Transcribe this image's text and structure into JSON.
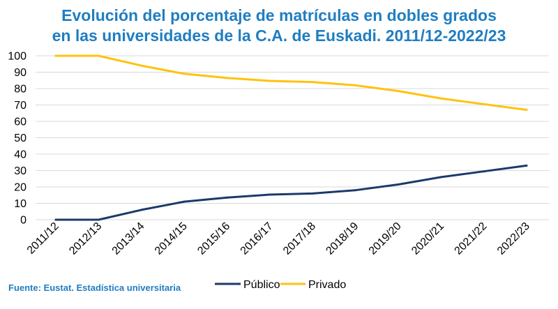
{
  "chart_data": {
    "type": "line",
    "title": [
      "Evolución del porcentaje de matrículas en dobles grados",
      "en las universidades de la C.A. de Euskadi. 2011/12-2022/23"
    ],
    "xlabel": "",
    "ylabel": "",
    "ylim": [
      0,
      100
    ],
    "yticks": [
      0,
      10,
      20,
      30,
      40,
      50,
      60,
      70,
      80,
      90,
      100
    ],
    "grid": true,
    "legend_position": "bottom",
    "categories": [
      "2011/12",
      "2012/13",
      "2013/14",
      "2014/15",
      "2015/16",
      "2016/17",
      "2017/18",
      "2018/19",
      "2019/20",
      "2020/21",
      "2021/22",
      "2022/23"
    ],
    "series": [
      {
        "name": "Público",
        "color": "#1b3a6b",
        "values": [
          0,
          0,
          6,
          11,
          13.5,
          15.3,
          16,
          18,
          21.5,
          26,
          29.5,
          33
        ]
      },
      {
        "name": "Privado",
        "color": "#ffc20e",
        "values": [
          100,
          100,
          94,
          89,
          86.5,
          84.7,
          84,
          82,
          78.5,
          74,
          70.5,
          67
        ]
      }
    ],
    "source": "Fuente: Eustat. Estadística universitaria"
  }
}
